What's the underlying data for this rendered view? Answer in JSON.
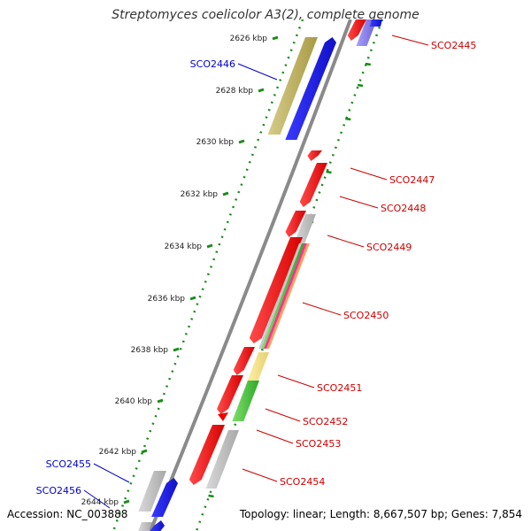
{
  "title": "Streptomyces coelicolor A3(2), complete genome",
  "footer": {
    "accession": "Accession: NC_003888",
    "stats": "Topology: linear; Length: 8,667,507 bp; Genes: 7,854"
  },
  "colors": {
    "forward_strand": "#ee0000",
    "reverse_strand": "#1010dd",
    "forward_label": "#cc0000",
    "reverse_label": "#0000cc",
    "tick_dots": "#1a8a1a",
    "backbone": "#8a8a8a"
  },
  "ruler": [
    {
      "label": "2626 kbp"
    },
    {
      "label": "2628 kbp"
    },
    {
      "label": "2630 kbp"
    },
    {
      "label": "2632 kbp"
    },
    {
      "label": "2634 kbp"
    },
    {
      "label": "2636 kbp"
    },
    {
      "label": "2638 kbp"
    },
    {
      "label": "2640 kbp"
    },
    {
      "label": "2642 kbp"
    },
    {
      "label": "2644 kbp"
    }
  ],
  "gene_labels": [
    {
      "name": "SCO2445",
      "strand": "forward"
    },
    {
      "name": "SCO2446",
      "strand": "reverse"
    },
    {
      "name": "SCO2447",
      "strand": "forward"
    },
    {
      "name": "SCO2448",
      "strand": "forward"
    },
    {
      "name": "SCO2449",
      "strand": "forward"
    },
    {
      "name": "SCO2450",
      "strand": "forward"
    },
    {
      "name": "SCO2451",
      "strand": "forward"
    },
    {
      "name": "SCO2452",
      "strand": "forward"
    },
    {
      "name": "SCO2453",
      "strand": "forward"
    },
    {
      "name": "SCO2454",
      "strand": "forward"
    },
    {
      "name": "SCO2455",
      "strand": "reverse"
    },
    {
      "name": "SCO2456",
      "strand": "reverse"
    }
  ]
}
